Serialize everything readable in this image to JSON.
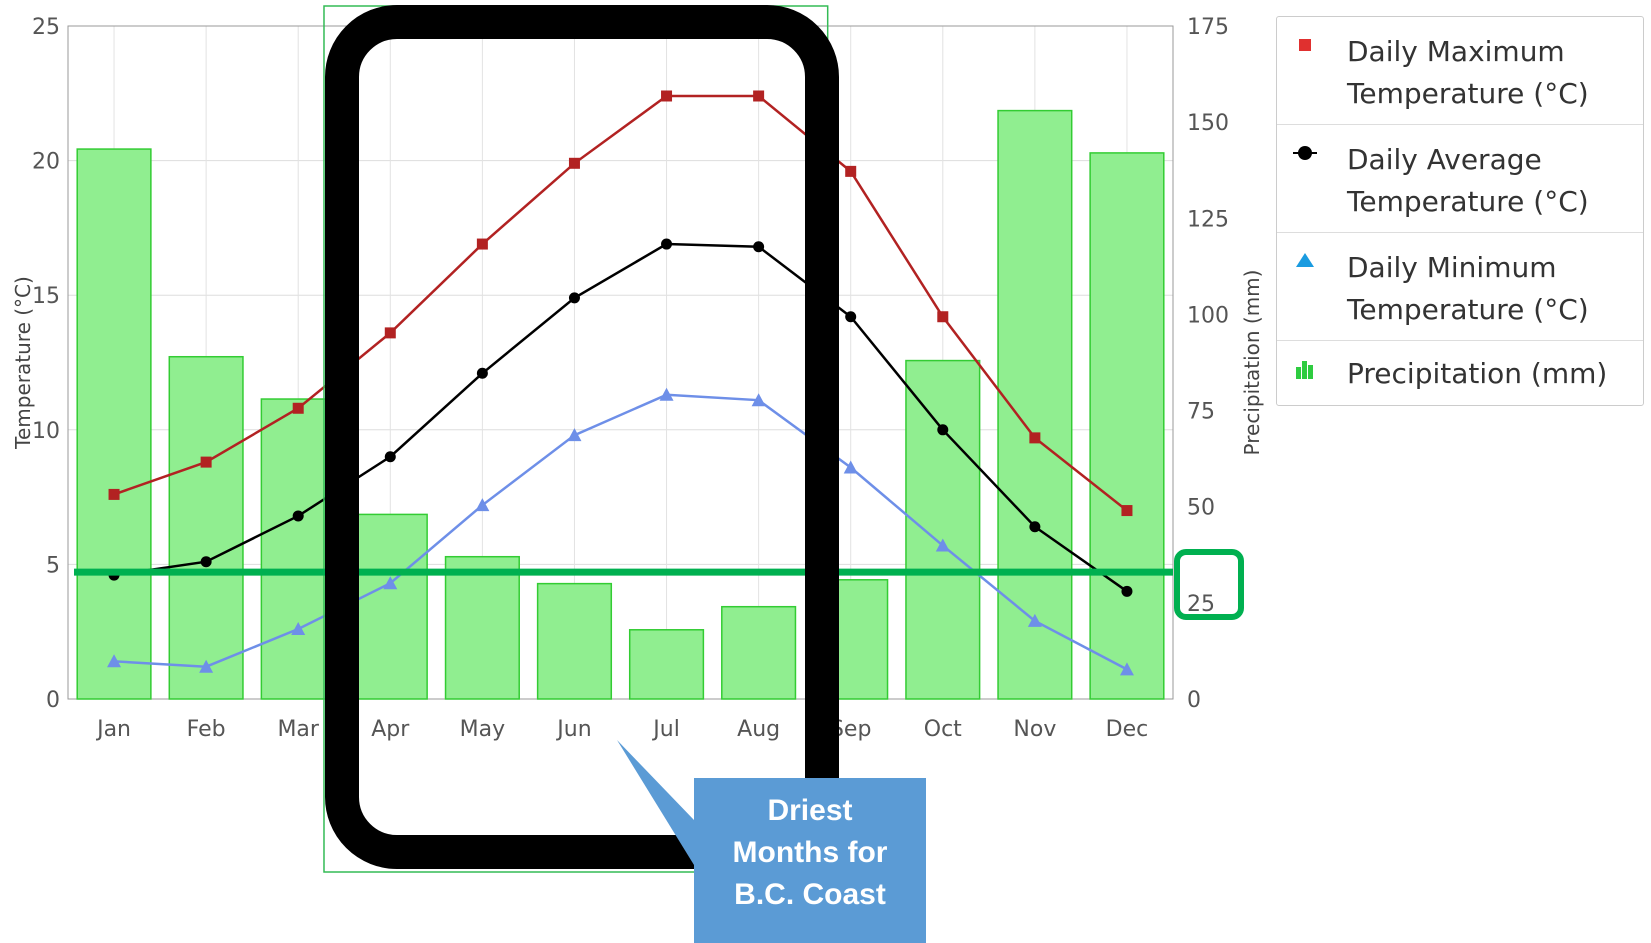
{
  "chart_data": {
    "type": "bar+line",
    "categories": [
      "Jan",
      "Feb",
      "Mar",
      "Apr",
      "May",
      "Jun",
      "Jul",
      "Aug",
      "Sep",
      "Oct",
      "Nov",
      "Dec"
    ],
    "series": [
      {
        "name": "Daily Maximum Temperature (°C)",
        "type": "line",
        "axis": "left",
        "color": "#b22222",
        "marker": "square",
        "values": [
          7.6,
          8.8,
          10.8,
          13.6,
          16.9,
          19.9,
          22.4,
          22.4,
          19.6,
          14.2,
          9.7,
          7.0
        ]
      },
      {
        "name": "Daily Average Temperature (°C)",
        "type": "line",
        "axis": "left",
        "color": "#000000",
        "marker": "circle",
        "values": [
          4.6,
          5.1,
          6.8,
          9.0,
          12.1,
          14.9,
          16.9,
          16.8,
          14.2,
          10.0,
          6.4,
          4.0
        ]
      },
      {
        "name": "Daily Minimum Temperature (°C)",
        "type": "line",
        "axis": "left",
        "color": "#6e8fe8",
        "marker": "triangle",
        "values": [
          1.4,
          1.2,
          2.6,
          4.3,
          7.2,
          9.8,
          11.3,
          11.1,
          8.6,
          5.7,
          2.9,
          1.1
        ]
      },
      {
        "name": "Precipitation (mm)",
        "type": "bar",
        "axis": "right",
        "color": "#90ee90",
        "values": [
          143,
          89,
          78,
          48,
          37,
          30,
          18,
          24,
          31,
          88,
          153,
          142
        ]
      }
    ],
    "ylabel": "Temperature (°C)",
    "y2label": "Precipitation (mm)",
    "ylim": [
      0,
      25
    ],
    "y2lim": [
      0,
      175
    ],
    "yticks": [
      "0",
      "5",
      "10",
      "15",
      "20",
      "25"
    ],
    "y2ticks": [
      "0",
      "25",
      "50",
      "75",
      "100",
      "125",
      "150",
      "175"
    ],
    "threshold_precipitation": 33,
    "highlight_months": [
      "Apr",
      "May",
      "Jun",
      "Jul",
      "Aug"
    ],
    "grid": true,
    "legend_position": "right"
  },
  "legend": {
    "max_label_a": "Daily Maximum",
    "max_label_b": "Temperature (°C)",
    "avg_label_a": "Daily Average",
    "avg_label_b": "Temperature (°C)",
    "min_label_a": "Daily Minimum",
    "min_label_b": "Temperature (°C)",
    "precip_label": "Precipitation (mm)"
  },
  "callout": {
    "line1": "Driest",
    "line2": "Months for",
    "line3": "B.C. Coast"
  },
  "colors": {
    "threshold_line": "#00b050",
    "highlight_box": "#000000",
    "callout_bg": "#5b9bd5",
    "bar_fill": "#90ee90",
    "bar_stroke": "#33cc33"
  }
}
